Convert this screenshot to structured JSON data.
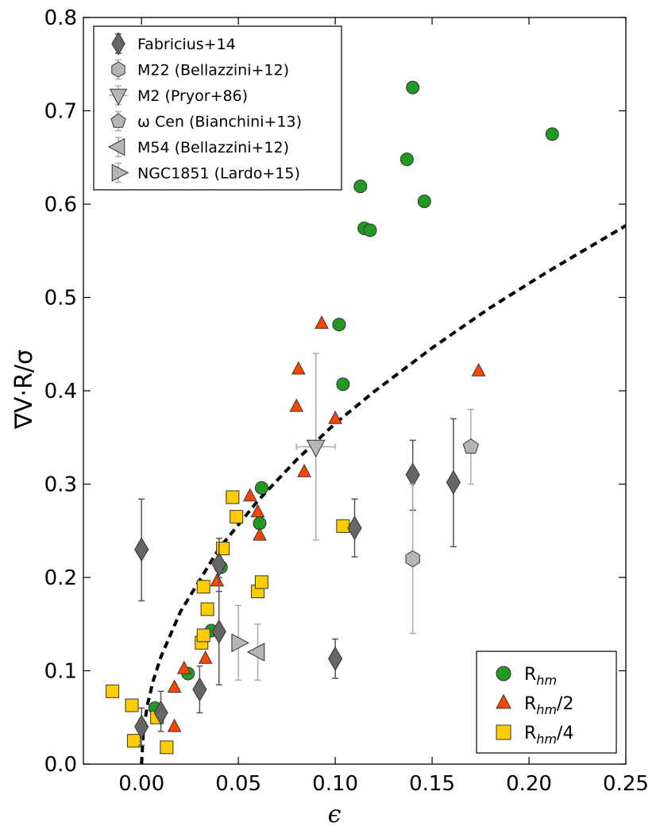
{
  "chart_data": {
    "type": "scatter",
    "xlabel": "ϵ",
    "ylabel": "∇V·R/σ",
    "xlim": [
      -0.03,
      0.25
    ],
    "ylim": [
      0.0,
      0.8
    ],
    "xticks": [
      "0.00",
      "0.05",
      "0.10",
      "0.15",
      "0.20",
      "0.25"
    ],
    "xtick_values": [
      0.0,
      0.05,
      0.1,
      0.15,
      0.2,
      0.25
    ],
    "yticks": [
      "0.0",
      "0.1",
      "0.2",
      "0.3",
      "0.4",
      "0.5",
      "0.6",
      "0.7",
      "0.8"
    ],
    "ytick_values": [
      0.0,
      0.1,
      0.2,
      0.3,
      0.4,
      0.5,
      0.6,
      0.7,
      0.8
    ],
    "curve": {
      "name": "dashed model",
      "x": [
        0.0,
        0.001,
        0.003,
        0.006,
        0.01,
        0.02,
        0.04,
        0.06,
        0.08,
        0.1,
        0.12,
        0.15,
        0.18,
        0.21,
        0.25
      ],
      "y": [
        0.0,
        0.036,
        0.063,
        0.089,
        0.115,
        0.163,
        0.231,
        0.282,
        0.326,
        0.365,
        0.399,
        0.446,
        0.489,
        0.528,
        0.577
      ],
      "color": "#000000"
    },
    "series": [
      {
        "name": "Fabricius+14",
        "marker": "diamond",
        "color": "#666666",
        "legend": "top-left",
        "points": [
          {
            "x": 0.0,
            "y": 0.04,
            "ylo": 0.02,
            "yhi": 0.06
          },
          {
            "x": 0.01,
            "y": 0.055,
            "ylo": 0.035,
            "yhi": 0.078
          },
          {
            "x": 0.0,
            "y": 0.23,
            "ylo": 0.175,
            "yhi": 0.284
          },
          {
            "x": 0.03,
            "y": 0.08,
            "ylo": 0.055,
            "yhi": 0.105
          },
          {
            "x": 0.04,
            "y": 0.142,
            "ylo": 0.085,
            "yhi": 0.2
          },
          {
            "x": 0.04,
            "y": 0.214,
            "ylo": 0.185,
            "yhi": 0.242
          },
          {
            "x": 0.1,
            "y": 0.113,
            "ylo": 0.092,
            "yhi": 0.134
          },
          {
            "x": 0.11,
            "y": 0.253,
            "ylo": 0.222,
            "yhi": 0.284
          },
          {
            "x": 0.14,
            "y": 0.31,
            "ylo": 0.272,
            "yhi": 0.347
          },
          {
            "x": 0.161,
            "y": 0.302,
            "ylo": 0.233,
            "yhi": 0.37
          }
        ]
      },
      {
        "name": "M22 (Bellazzini+12)",
        "marker": "hexagon",
        "color": "#b5b5b5",
        "legend": "top-left",
        "points": [
          {
            "x": 0.14,
            "y": 0.22,
            "ylo": 0.14,
            "yhi": 0.3
          }
        ]
      },
      {
        "name": "M2 (Pryor+86)",
        "marker": "triangle-down",
        "color": "#b5b5b5",
        "legend": "top-left",
        "points": [
          {
            "x": 0.09,
            "y": 0.34,
            "ylo": 0.24,
            "yhi": 0.44,
            "xlo": 0.08,
            "xhi": 0.1
          }
        ]
      },
      {
        "name": "ω Cen (Bianchini+13)",
        "marker": "pentagon",
        "color": "#b5b5b5",
        "legend": "top-left",
        "points": [
          {
            "x": 0.17,
            "y": 0.34,
            "ylo": 0.3,
            "yhi": 0.38
          }
        ]
      },
      {
        "name": "M54 (Bellazzini+12)",
        "marker": "triangle-left",
        "color": "#b5b5b5",
        "legend": "top-left",
        "points": [
          {
            "x": 0.06,
            "y": 0.12,
            "ylo": 0.09,
            "yhi": 0.15
          }
        ]
      },
      {
        "name": "NGC1851 (Lardo+15)",
        "marker": "triangle-right",
        "color": "#b5b5b5",
        "legend": "top-left",
        "points": [
          {
            "x": 0.05,
            "y": 0.13,
            "ylo": 0.09,
            "yhi": 0.17
          }
        ]
      },
      {
        "name": "R_hm",
        "marker": "circle",
        "color": "#229922",
        "legend": "bottom-right",
        "points": [
          {
            "x": 0.007,
            "y": 0.06
          },
          {
            "x": 0.024,
            "y": 0.097
          },
          {
            "x": 0.036,
            "y": 0.143
          },
          {
            "x": 0.041,
            "y": 0.211
          },
          {
            "x": 0.061,
            "y": 0.258
          },
          {
            "x": 0.062,
            "y": 0.296
          },
          {
            "x": 0.102,
            "y": 0.471
          },
          {
            "x": 0.104,
            "y": 0.407
          },
          {
            "x": 0.113,
            "y": 0.619
          },
          {
            "x": 0.115,
            "y": 0.574
          },
          {
            "x": 0.118,
            "y": 0.572
          },
          {
            "x": 0.137,
            "y": 0.648
          },
          {
            "x": 0.14,
            "y": 0.725
          },
          {
            "x": 0.146,
            "y": 0.603
          },
          {
            "x": 0.212,
            "y": 0.675
          }
        ]
      },
      {
        "name": "R_hm/2",
        "marker": "triangle-up",
        "color": "#ff4400",
        "legend": "bottom-right",
        "points": [
          {
            "x": 0.008,
            "y": 0.052
          },
          {
            "x": 0.017,
            "y": 0.04
          },
          {
            "x": 0.017,
            "y": 0.082
          },
          {
            "x": 0.022,
            "y": 0.102
          },
          {
            "x": 0.033,
            "y": 0.113
          },
          {
            "x": 0.039,
            "y": 0.196
          },
          {
            "x": 0.056,
            "y": 0.287
          },
          {
            "x": 0.06,
            "y": 0.27
          },
          {
            "x": 0.061,
            "y": 0.245
          },
          {
            "x": 0.08,
            "y": 0.383
          },
          {
            "x": 0.081,
            "y": 0.423
          },
          {
            "x": 0.084,
            "y": 0.313
          },
          {
            "x": 0.093,
            "y": 0.472
          },
          {
            "x": 0.1,
            "y": 0.37
          },
          {
            "x": 0.174,
            "y": 0.421
          }
        ]
      },
      {
        "name": "R_hm/4",
        "marker": "square",
        "color": "#ffcc00",
        "legend": "bottom-right",
        "points": [
          {
            "x": -0.015,
            "y": 0.078
          },
          {
            "x": -0.005,
            "y": 0.063
          },
          {
            "x": -0.004,
            "y": 0.025
          },
          {
            "x": 0.008,
            "y": 0.05
          },
          {
            "x": 0.013,
            "y": 0.018
          },
          {
            "x": 0.031,
            "y": 0.13
          },
          {
            "x": 0.032,
            "y": 0.19
          },
          {
            "x": 0.032,
            "y": 0.138
          },
          {
            "x": 0.034,
            "y": 0.166
          },
          {
            "x": 0.042,
            "y": 0.231
          },
          {
            "x": 0.047,
            "y": 0.286
          },
          {
            "x": 0.049,
            "y": 0.265
          },
          {
            "x": 0.06,
            "y": 0.185
          },
          {
            "x": 0.062,
            "y": 0.195
          },
          {
            "x": 0.104,
            "y": 0.255
          }
        ]
      }
    ],
    "legend_top": {
      "placement": "top-left",
      "entries": [
        "Fabricius+14",
        "M22 (Bellazzini+12)",
        "M2 (Pryor+86)",
        "ω Cen (Bianchini+13)",
        "M54 (Bellazzini+12)",
        "NGC1851 (Lardo+15)"
      ]
    },
    "legend_bottom": {
      "placement": "bottom-right",
      "entries": [
        {
          "base": "R",
          "sub": "hm",
          "suffix": ""
        },
        {
          "base": "R",
          "sub": "hm",
          "suffix": "/2"
        },
        {
          "base": "R",
          "sub": "hm",
          "suffix": "/4"
        }
      ]
    }
  }
}
